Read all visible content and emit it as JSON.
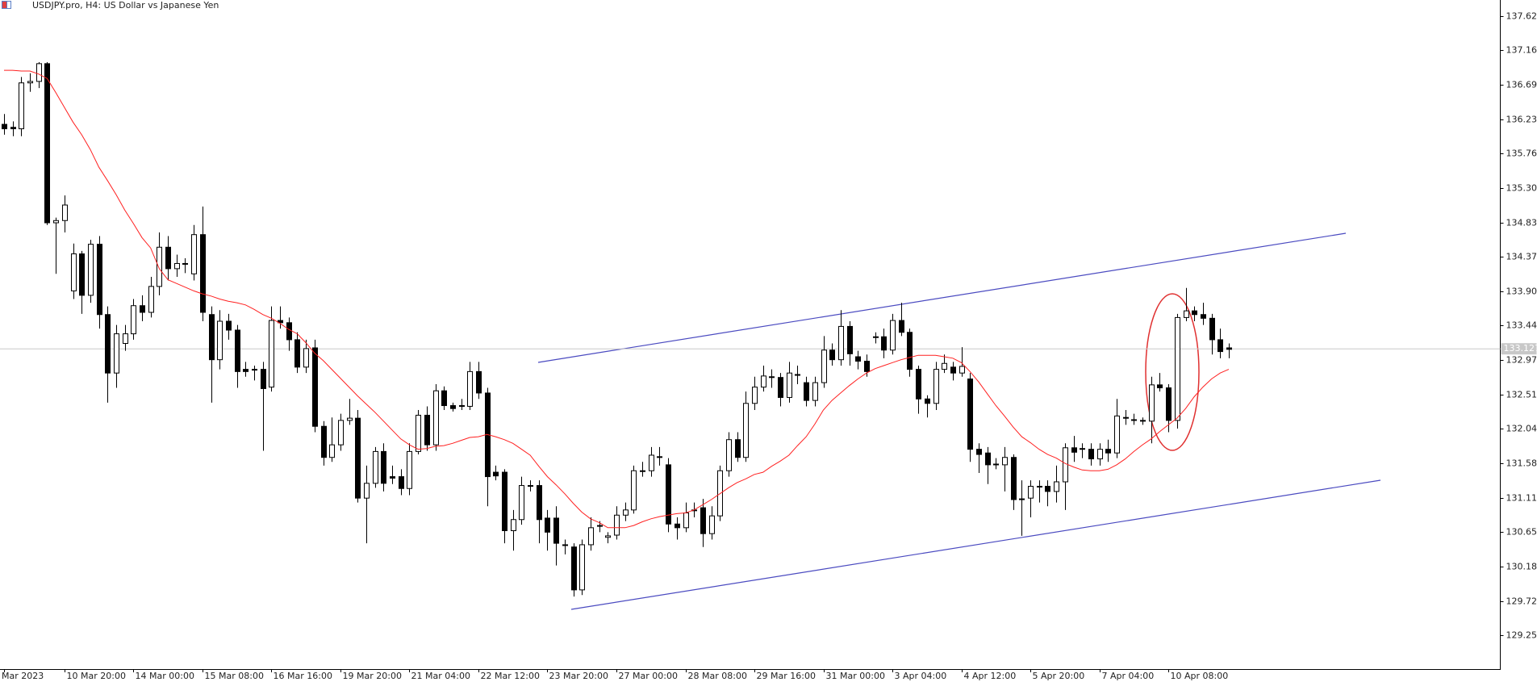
{
  "chart_data": {
    "type": "candlestick",
    "title": "USDJPY.pro, H4:  US Dollar vs Japanese Yen",
    "categories": [
      "Mar 2023",
      null,
      null,
      null,
      null,
      null,
      null,
      "10 Mar 20:00",
      null,
      null,
      null,
      null,
      null,
      null,
      null,
      "14 Mar 00:00",
      null,
      null,
      null,
      null,
      null,
      null,
      null,
      "15 Mar 08:00",
      null,
      null,
      null,
      null,
      null,
      null,
      null,
      "16 Mar 16:00",
      null,
      null,
      null,
      null,
      null,
      null,
      null,
      "19 Mar 20:00",
      null,
      null,
      null,
      null,
      null,
      null,
      null,
      "21 Mar 04:00",
      null,
      null,
      null,
      null,
      null,
      null,
      null,
      "22 Mar 12:00",
      null,
      null,
      null,
      null,
      null,
      null,
      null,
      "23 Mar 20:00",
      null,
      null,
      null,
      null,
      null,
      null,
      null,
      "27 Mar 00:00",
      null,
      null,
      null,
      null,
      null,
      null,
      null,
      "28 Mar 08:00",
      null,
      null,
      null,
      null,
      null,
      null,
      null,
      "29 Mar 16:00",
      null,
      null,
      null,
      null,
      null,
      null,
      null,
      "31 Mar 00:00",
      null,
      null,
      null,
      null,
      null,
      null,
      null,
      "3 Apr 04:00",
      null,
      null,
      null,
      null,
      null,
      null,
      null,
      "4 Apr 12:00",
      null,
      null,
      null,
      null,
      null,
      null,
      null,
      "5 Apr 20:00",
      null,
      null,
      null,
      null,
      null,
      null,
      null,
      "7 Apr 04:00",
      null,
      null,
      null,
      null,
      null,
      null,
      null,
      "10 Apr 08:00",
      null,
      null,
      null,
      null,
      null,
      null,
      null
    ],
    "open": [
      136.16,
      136.12,
      136.1,
      136.72,
      136.74,
      136.98,
      134.83,
      134.86,
      133.91,
      134.41,
      133.85,
      134.54,
      133.59,
      132.8,
      133.2,
      133.33,
      133.71,
      133.62,
      133.97,
      134.5,
      134.21,
      134.28,
      134.14,
      134.67,
      133.59,
      132.98,
      133.5,
      133.38,
      132.85,
      132.85,
      132.85,
      132.61,
      133.51,
      133.48,
      133.25,
      132.88,
      133.14,
      132.08,
      131.66,
      131.83,
      132.16,
      132.19,
      131.11,
      131.31,
      131.74,
      131.4,
      131.4,
      131.24,
      131.74,
      132.23,
      131.83,
      132.56,
      132.36,
      132.36,
      132.35,
      132.82,
      132.53,
      131.46,
      131.46,
      130.67,
      130.82,
      131.28,
      131.28,
      130.84,
      130.84,
      130.47,
      130.45,
      129.87,
      130.48,
      130.74,
      130.58,
      130.61,
      130.88,
      130.95,
      131.48,
      131.48,
      131.66,
      131.56,
      130.76,
      130.71,
      130.95,
      130.98,
      130.63,
      130.87,
      131.48,
      131.9,
      131.66,
      132.39,
      132.61,
      132.74,
      132.74,
      132.47,
      132.78,
      132.67,
      132.43,
      132.67,
      133.11,
      132.98,
      133.43,
      133.02,
      132.96,
      133.29,
      133.29,
      133.11,
      133.51,
      133.35,
      132.85,
      132.45,
      132.39,
      132.85,
      132.88,
      132.8,
      132.72,
      131.77,
      131.72,
      131.57,
      131.56,
      131.66,
      131.1,
      131.11,
      131.27,
      131.27,
      131.2,
      131.33,
      131.79,
      131.78,
      131.77,
      131.64,
      131.77,
      131.72,
      132.2,
      132.17,
      132.16,
      132.15,
      132.64,
      132.6,
      132.16,
      133.55,
      133.64,
      133.59,
      133.54,
      133.25,
      133.14
    ],
    "high": [
      136.3,
      136.2,
      136.8,
      136.85,
      137.0,
      137.0,
      134.9,
      135.2,
      134.55,
      134.45,
      134.6,
      134.65,
      133.7,
      133.45,
      133.45,
      133.8,
      133.85,
      134.1,
      134.7,
      134.65,
      134.4,
      134.35,
      134.8,
      135.05,
      133.7,
      133.65,
      133.6,
      133.45,
      132.95,
      132.9,
      132.95,
      133.7,
      133.7,
      133.55,
      133.35,
      133.25,
      133.25,
      132.15,
      132.2,
      132.25,
      132.45,
      132.3,
      131.55,
      131.8,
      131.85,
      131.55,
      131.5,
      131.85,
      132.3,
      132.35,
      132.65,
      132.62,
      132.4,
      132.45,
      132.95,
      132.95,
      132.6,
      131.55,
      131.5,
      130.95,
      131.4,
      131.35,
      131.35,
      130.95,
      131.0,
      130.55,
      130.5,
      130.55,
      130.85,
      130.8,
      130.65,
      131.0,
      131.05,
      131.55,
      131.6,
      131.8,
      131.8,
      131.65,
      130.85,
      131.05,
      131.05,
      131.1,
      131.0,
      131.55,
      132.0,
      132.0,
      132.55,
      132.75,
      132.9,
      132.85,
      132.8,
      132.95,
      132.9,
      132.75,
      132.75,
      133.3,
      133.2,
      133.65,
      133.5,
      133.1,
      133.05,
      133.35,
      133.4,
      133.6,
      133.75,
      133.4,
      132.9,
      132.5,
      132.95,
      133.05,
      132.95,
      133.15,
      132.8,
      131.85,
      131.8,
      131.65,
      131.8,
      131.7,
      131.35,
      131.35,
      131.35,
      131.35,
      131.55,
      131.85,
      131.95,
      131.85,
      131.85,
      131.85,
      131.9,
      132.45,
      132.3,
      132.25,
      132.2,
      132.75,
      132.8,
      132.65,
      133.6,
      133.95,
      133.7,
      133.75,
      133.6,
      133.4,
      133.2
    ],
    "low": [
      136.02,
      136.0,
      136.0,
      136.6,
      136.65,
      134.8,
      134.14,
      134.7,
      133.8,
      133.6,
      133.75,
      133.4,
      132.4,
      132.6,
      133.1,
      133.25,
      133.5,
      133.55,
      133.85,
      134.05,
      134.1,
      134.15,
      134.05,
      133.5,
      132.4,
      132.85,
      133.25,
      132.6,
      132.75,
      132.7,
      131.75,
      132.55,
      133.4,
      133.1,
      132.8,
      132.8,
      132.0,
      131.55,
      131.6,
      131.75,
      132.1,
      131.05,
      130.5,
      131.25,
      131.2,
      131.3,
      131.15,
      131.15,
      131.7,
      131.75,
      131.75,
      132.3,
      132.28,
      132.3,
      132.3,
      132.45,
      131.0,
      131.35,
      130.5,
      130.4,
      130.75,
      131.2,
      130.5,
      130.4,
      130.2,
      130.35,
      129.78,
      129.8,
      130.4,
      130.65,
      130.5,
      130.55,
      130.8,
      130.9,
      131.4,
      131.4,
      131.55,
      130.65,
      130.55,
      130.65,
      130.85,
      130.45,
      130.55,
      130.8,
      131.4,
      131.6,
      131.6,
      132.3,
      132.55,
      132.6,
      132.35,
      132.4,
      132.65,
      132.35,
      132.35,
      132.6,
      132.9,
      132.9,
      132.9,
      132.85,
      132.75,
      133.2,
      133.0,
      133.05,
      133.3,
      132.75,
      132.25,
      132.2,
      132.3,
      132.8,
      132.7,
      132.75,
      131.6,
      131.45,
      131.3,
      131.5,
      131.2,
      130.95,
      130.6,
      130.85,
      131.05,
      131.0,
      131.05,
      130.95,
      131.6,
      131.65,
      131.55,
      131.55,
      131.6,
      131.65,
      132.1,
      132.1,
      132.1,
      131.85,
      132.55,
      132.0,
      132.05,
      133.5,
      133.5,
      133.45,
      133.05,
      133.0,
      133.0
    ],
    "close": [
      136.1,
      136.1,
      136.72,
      136.74,
      136.98,
      134.83,
      134.86,
      135.07,
      134.41,
      133.85,
      134.54,
      133.59,
      132.8,
      133.33,
      133.33,
      133.71,
      133.62,
      133.97,
      134.5,
      134.21,
      134.28,
      134.27,
      134.67,
      133.62,
      132.98,
      133.5,
      133.38,
      132.82,
      132.82,
      132.84,
      132.59,
      133.51,
      133.48,
      133.25,
      132.88,
      133.13,
      132.08,
      131.66,
      131.83,
      132.16,
      132.19,
      131.11,
      131.31,
      131.74,
      131.31,
      131.38,
      131.24,
      131.74,
      132.23,
      131.83,
      132.56,
      132.36,
      132.32,
      132.35,
      132.82,
      132.53,
      131.4,
      131.41,
      130.67,
      130.82,
      131.28,
      131.27,
      130.82,
      130.65,
      130.5,
      130.48,
      129.87,
      130.48,
      130.71,
      130.73,
      130.6,
      130.88,
      130.95,
      131.48,
      131.47,
      131.69,
      131.67,
      130.76,
      130.71,
      130.91,
      130.94,
      130.63,
      130.87,
      131.48,
      131.9,
      131.66,
      132.39,
      132.61,
      132.76,
      132.75,
      132.47,
      132.8,
      132.77,
      132.43,
      132.67,
      133.11,
      132.98,
      133.43,
      133.06,
      132.96,
      132.82,
      133.28,
      133.11,
      133.51,
      133.35,
      132.85,
      132.45,
      132.39,
      132.85,
      132.93,
      132.8,
      132.89,
      131.77,
      131.7,
      131.56,
      131.56,
      131.66,
      131.09,
      131.09,
      131.27,
      131.26,
      131.2,
      131.33,
      131.79,
      131.73,
      131.77,
      131.64,
      131.77,
      131.72,
      132.22,
      132.19,
      132.16,
      132.15,
      132.64,
      132.6,
      132.16,
      133.55,
      133.64,
      133.59,
      133.54,
      133.25,
      133.09,
      133.12
    ],
    "up_color": "#ffffff",
    "down_color": "#000000",
    "moving_average": {
      "color": "#ff2020",
      "values": [
        136.89,
        136.89,
        136.88,
        136.88,
        136.84,
        136.78,
        136.59,
        136.39,
        136.19,
        136.02,
        135.82,
        135.58,
        135.4,
        135.21,
        135.0,
        134.82,
        134.63,
        134.49,
        134.21,
        134.06,
        134.01,
        133.96,
        133.91,
        133.87,
        133.84,
        133.8,
        133.77,
        133.75,
        133.72,
        133.66,
        133.59,
        133.54,
        133.47,
        133.39,
        133.33,
        133.21,
        133.07,
        132.97,
        132.85,
        132.73,
        132.61,
        132.49,
        132.38,
        132.27,
        132.15,
        132.03,
        131.91,
        131.83,
        131.77,
        131.78,
        131.81,
        131.82,
        131.85,
        131.89,
        131.93,
        131.94,
        131.97,
        131.94,
        131.9,
        131.85,
        131.77,
        131.69,
        131.54,
        131.4,
        131.29,
        131.17,
        131.04,
        130.92,
        130.83,
        130.78,
        130.71,
        130.71,
        130.71,
        130.74,
        130.79,
        130.83,
        130.86,
        130.88,
        130.9,
        130.91,
        130.95,
        131.02,
        131.09,
        131.17,
        131.25,
        131.32,
        131.37,
        131.43,
        131.46,
        131.54,
        131.61,
        131.69,
        131.82,
        131.94,
        132.11,
        132.3,
        132.43,
        132.53,
        132.63,
        132.72,
        132.8,
        132.86,
        132.9,
        132.94,
        132.98,
        133.01,
        133.04,
        133.04,
        133.04,
        133.02,
        133.0,
        132.94,
        132.82,
        132.68,
        132.52,
        132.36,
        132.22,
        132.07,
        131.94,
        131.86,
        131.77,
        131.7,
        131.65,
        131.58,
        131.53,
        131.49,
        131.48,
        131.48,
        131.5,
        131.56,
        131.64,
        131.74,
        131.83,
        131.91,
        132.01,
        132.1,
        132.19,
        132.32,
        132.48,
        132.61,
        132.72,
        132.8,
        132.85
      ]
    },
    "current_price": 133.127,
    "ylim": [
      128.8,
      137.84
    ],
    "yticks": [
      137.625,
      {
        "value": 137.16,
        "label": "137.160"
      },
      136.695,
      136.23,
      135.765,
      {
        "value": 135.3,
        "label": "135.300"
      },
      134.835,
      134.37,
      133.905,
      133.44,
      132.975,
      {
        "value": 132.51,
        "label": "132.510"
      },
      132.045,
      {
        "value": 131.58,
        "label": "131.580"
      },
      131.115,
      {
        "value": 130.65,
        "label": "130.650"
      },
      130.185,
      {
        "value": 129.72,
        "label": "129.720"
      },
      129.255
    ]
  }
}
